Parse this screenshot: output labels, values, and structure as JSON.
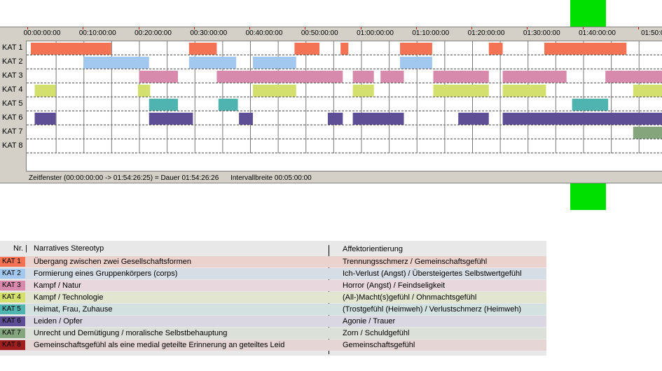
{
  "colors": {
    "kat1": "#f47355",
    "kat2": "#a2c8ef",
    "kat3": "#d88aad",
    "kat4": "#d4e06e",
    "kat5": "#4fb3b0",
    "kat6": "#5e4e96",
    "kat7": "#85a57c",
    "kat8": "#a01e1e",
    "marker": "#00e000"
  },
  "timeline": {
    "rows": [
      "KAT 1",
      "KAT 2",
      "KAT 3",
      "KAT 4",
      "KAT 5",
      "KAT 6",
      "KAT 7",
      "KAT 8"
    ],
    "ticks": [
      "00:00:00:00",
      "00:10:00:00",
      "00:20:00:00",
      "00:30:00:00",
      "00:40:00:00",
      "00:50:00:00",
      "01:00:00:00",
      "01:10:00:00",
      "01:20:00:00",
      "01:30:00:00",
      "01:40:00:00",
      "01:50:0"
    ],
    "segments": [
      {
        "row": 0,
        "start": 0.5,
        "end": 15.0
      },
      {
        "row": 0,
        "start": 29.0,
        "end": 34.0
      },
      {
        "row": 0,
        "start": 48.0,
        "end": 52.5
      },
      {
        "row": 0,
        "start": 56.3,
        "end": 57.7
      },
      {
        "row": 0,
        "start": 67.0,
        "end": 72.8
      },
      {
        "row": 0,
        "start": 83.0,
        "end": 85.5
      },
      {
        "row": 0,
        "start": 93.0,
        "end": 107.8
      },
      {
        "row": 1,
        "start": 10.0,
        "end": 21.8
      },
      {
        "row": 1,
        "start": 29.0,
        "end": 37.5
      },
      {
        "row": 1,
        "start": 40.5,
        "end": 48.3
      },
      {
        "row": 1,
        "start": 67.0,
        "end": 72.8
      },
      {
        "row": 2,
        "start": 20.0,
        "end": 27.0
      },
      {
        "row": 2,
        "start": 34.0,
        "end": 56.7
      },
      {
        "row": 2,
        "start": 58.5,
        "end": 62.3
      },
      {
        "row": 2,
        "start": 63.5,
        "end": 67.7
      },
      {
        "row": 2,
        "start": 73.0,
        "end": 83.0
      },
      {
        "row": 2,
        "start": 85.5,
        "end": 97.0
      },
      {
        "row": 2,
        "start": 104.0,
        "end": 114.5
      },
      {
        "row": 3,
        "start": 1.2,
        "end": 5.0
      },
      {
        "row": 3,
        "start": 19.8,
        "end": 22.0
      },
      {
        "row": 3,
        "start": 40.5,
        "end": 48.3
      },
      {
        "row": 3,
        "start": 58.5,
        "end": 62.3
      },
      {
        "row": 3,
        "start": 73.0,
        "end": 83.0
      },
      {
        "row": 3,
        "start": 85.5,
        "end": 93.3
      },
      {
        "row": 3,
        "start": 109.0,
        "end": 114.5
      },
      {
        "row": 4,
        "start": 21.8,
        "end": 27.0
      },
      {
        "row": 4,
        "start": 34.3,
        "end": 37.8
      },
      {
        "row": 4,
        "start": 98.0,
        "end": 104.5
      },
      {
        "row": 5,
        "start": 1.2,
        "end": 5.0
      },
      {
        "row": 5,
        "start": 21.8,
        "end": 29.7
      },
      {
        "row": 5,
        "start": 38.0,
        "end": 40.5
      },
      {
        "row": 5,
        "start": 54.0,
        "end": 56.7
      },
      {
        "row": 5,
        "start": 58.5,
        "end": 67.7
      },
      {
        "row": 5,
        "start": 77.5,
        "end": 83.0
      },
      {
        "row": 5,
        "start": 85.5,
        "end": 114.5
      },
      {
        "row": 6,
        "start": 109.0,
        "end": 114.5
      }
    ],
    "status": {
      "window": "Zeitfenster (00:00:00:00 -> 01:54:26:25) = Dauer 01:54:26:26",
      "interval": "Intervallbreite 00:05:00:00"
    }
  },
  "legend": {
    "header_nr": "Nr. |",
    "header_stereotyp": "Narratives Stereotyp",
    "header_affekt": "Affektorientierung",
    "rows": [
      {
        "tag": "KAT 1",
        "stereotyp": "Übergang zwischen zwei Gesellschaftsformen",
        "affekt": "Trennungsschmerz / Gemeinschaftsgefühl",
        "color": "#f47355",
        "bg": "#ecd2cc"
      },
      {
        "tag": "KAT 2",
        "stereotyp": "Formierung eines Gruppenkörpers (corps)",
        "affekt": "Ich-Verlust (Angst) / Übersteigertes Selbstwertgefühl",
        "color": "#a2c8ef",
        "bg": "#d7dde4"
      },
      {
        "tag": "KAT 3",
        "stereotyp": "Kampf / Natur",
        "affekt": "Horror (Angst) / Feindseligkeit",
        "color": "#d88aad",
        "bg": "#e8d7dd"
      },
      {
        "tag": "KAT 4",
        "stereotyp": "Kampf / Technologie",
        "affekt": "(All-)Macht(s)gefühl / Ohnmachtsgefühl",
        "color": "#d4e06e",
        "bg": "#e2e5d0"
      },
      {
        "tag": "KAT 5",
        "stereotyp": "Heimat, Frau, Zuhause",
        "affekt": "(Trostgefühl (Heimweh) / Verlustschmerz (Heimweh)",
        "color": "#4fb3b0",
        "bg": "#d3e1e0"
      },
      {
        "tag": "KAT 6",
        "stereotyp": "Leiden / Opfer",
        "affekt": "Agonie / Trauer",
        "color": "#5e4e96",
        "bg": "#dad7e2"
      },
      {
        "tag": "KAT 7",
        "stereotyp": "Unrecht und Demütigung / moralische Selbstbehauptung",
        "affekt": "Zorn / Schuldgefühl",
        "color": "#85a57c",
        "bg": "#dbe0d8"
      },
      {
        "tag": "KAT 8",
        "stereotyp": "Gemeinschaftsgefühl als eine medial geteilte Erinnerung an geteiltes Leid",
        "affekt": "Gemeinschaftsgefühl",
        "color": "#a01e1e",
        "bg": "#e6d5d5"
      }
    ]
  }
}
